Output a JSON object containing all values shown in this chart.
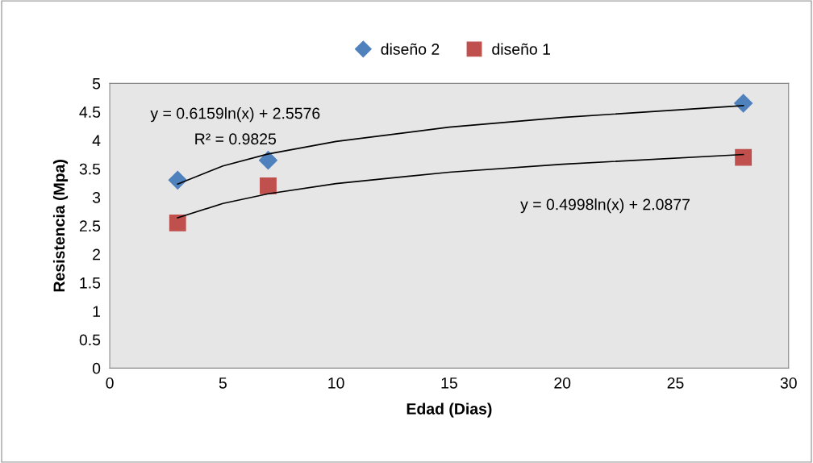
{
  "chart_data": {
    "type": "scatter",
    "xlabel": "Edad (Dias)",
    "ylabel": "Resistencia (Mpa)",
    "xlim": [
      0,
      30
    ],
    "xticks": [
      0,
      5,
      10,
      15,
      20,
      25,
      30
    ],
    "ylim": [
      0,
      5
    ],
    "yticks": [
      0,
      0.5,
      1,
      1.5,
      2,
      2.5,
      3,
      3.5,
      4,
      4.5,
      5
    ],
    "grid": false,
    "legend": "top",
    "series": [
      {
        "name": "diseño 2",
        "color": "#4f81bd",
        "marker": "diamond",
        "x": [
          3,
          7,
          28
        ],
        "values": [
          3.3,
          3.65,
          4.65
        ]
      },
      {
        "name": "diseño 1",
        "color": "#c0504d",
        "marker": "square",
        "x": [
          3,
          7,
          28
        ],
        "values": [
          2.55,
          3.2,
          3.7
        ]
      },
      {
        "type": "line",
        "color": "#000000",
        "marker": "none",
        "x": [
          3,
          5,
          7,
          10,
          15,
          20,
          28
        ],
        "values": [
          3.23,
          3.55,
          3.76,
          3.98,
          4.23,
          4.4,
          4.61
        ]
      },
      {
        "type": "line",
        "color": "#000000",
        "marker": "none",
        "x": [
          3,
          5,
          7,
          10,
          15,
          20,
          28
        ],
        "values": [
          2.64,
          2.89,
          3.06,
          3.24,
          3.44,
          3.58,
          3.75
        ]
      }
    ],
    "annotations": [
      "y = 0.6159ln(x) + 2.5576",
      "R² = 0.9825",
      "y = 0.4998ln(x) + 2.0877"
    ]
  }
}
